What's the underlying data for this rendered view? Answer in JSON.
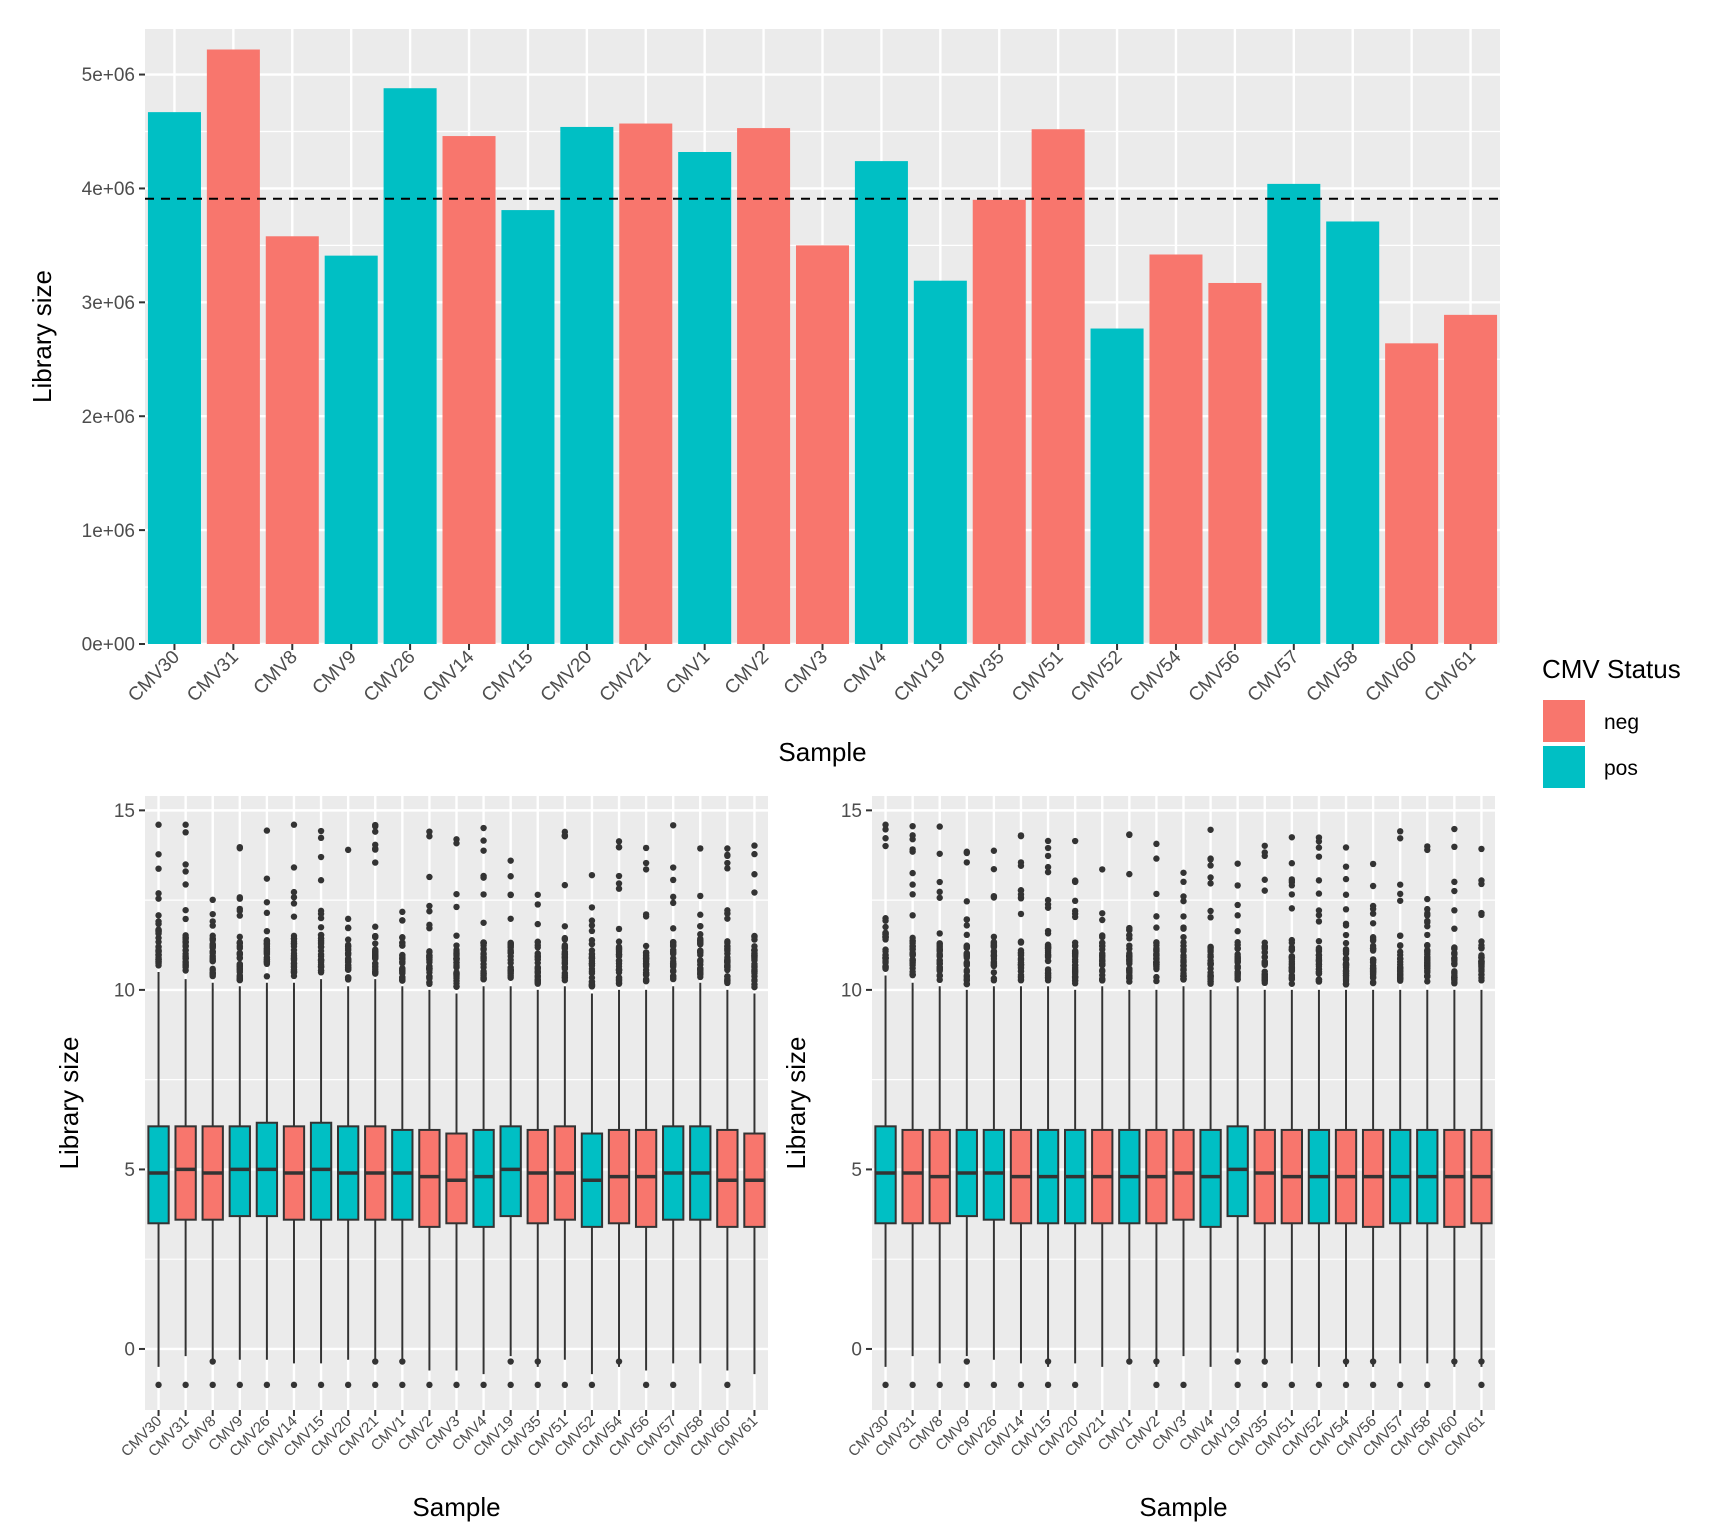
{
  "colors": {
    "neg": "#F8766D",
    "pos": "#00BFC4",
    "panel_bg": "#EBEBEB",
    "grid": "#FFFFFF",
    "box_line": "#333333"
  },
  "legend": {
    "title": "CMV Status",
    "items": [
      {
        "label": "neg",
        "color": "#F8766D"
      },
      {
        "label": "pos",
        "color": "#00BFC4"
      }
    ]
  },
  "chart_data": [
    {
      "type": "bar",
      "xlabel": "Sample",
      "ylabel": "Library size",
      "ylim": [
        0,
        5400000
      ],
      "yticks": [
        0,
        1000000,
        2000000,
        3000000,
        4000000,
        5000000
      ],
      "ytick_labels": [
        "0e+00",
        "1e+06",
        "2e+06",
        "3e+06",
        "4e+06",
        "5e+06"
      ],
      "reference_line": 3910000,
      "categories": [
        "CMV30",
        "CMV31",
        "CMV8",
        "CMV9",
        "CMV26",
        "CMV14",
        "CMV15",
        "CMV20",
        "CMV21",
        "CMV1",
        "CMV2",
        "CMV3",
        "CMV4",
        "CMV19",
        "CMV35",
        "CMV51",
        "CMV52",
        "CMV54",
        "CMV56",
        "CMV57",
        "CMV58",
        "CMV60",
        "CMV61"
      ],
      "status": [
        "pos",
        "neg",
        "neg",
        "pos",
        "pos",
        "neg",
        "pos",
        "pos",
        "neg",
        "pos",
        "neg",
        "neg",
        "pos",
        "pos",
        "neg",
        "neg",
        "pos",
        "neg",
        "neg",
        "pos",
        "pos",
        "neg",
        "neg"
      ],
      "values": [
        4670000,
        5220000,
        3580000,
        3410000,
        4880000,
        4460000,
        3810000,
        4540000,
        4570000,
        4320000,
        4530000,
        3500000,
        4240000,
        3190000,
        3900000,
        4520000,
        2770000,
        3420000,
        3170000,
        4040000,
        3710000,
        2640000,
        2890000
      ]
    },
    {
      "type": "box",
      "xlabel": "Sample",
      "ylabel": "Library size",
      "ylim": [
        -1.7,
        15.4
      ],
      "yticks": [
        0,
        5,
        10,
        15
      ],
      "ytick_labels": [
        "0",
        "5",
        "10",
        "15"
      ],
      "categories": [
        "CMV30",
        "CMV31",
        "CMV8",
        "CMV9",
        "CMV26",
        "CMV14",
        "CMV15",
        "CMV20",
        "CMV21",
        "CMV1",
        "CMV2",
        "CMV3",
        "CMV4",
        "CMV19",
        "CMV35",
        "CMV51",
        "CMV52",
        "CMV54",
        "CMV56",
        "CMV57",
        "CMV58",
        "CMV60",
        "CMV61"
      ],
      "status": [
        "pos",
        "neg",
        "neg",
        "pos",
        "pos",
        "neg",
        "pos",
        "pos",
        "neg",
        "pos",
        "neg",
        "neg",
        "pos",
        "pos",
        "neg",
        "neg",
        "pos",
        "neg",
        "neg",
        "pos",
        "pos",
        "neg",
        "neg"
      ],
      "boxes": [
        {
          "q1": 3.5,
          "median": 4.9,
          "q3": 6.2,
          "whisker_low": -0.5,
          "whisker_high": 10.5
        },
        {
          "q1": 3.6,
          "median": 5.0,
          "q3": 6.2,
          "whisker_low": -0.2,
          "whisker_high": 10.3
        },
        {
          "q1": 3.6,
          "median": 4.9,
          "q3": 6.2,
          "whisker_low": -0.3,
          "whisker_high": 10.2
        },
        {
          "q1": 3.7,
          "median": 5.0,
          "q3": 6.2,
          "whisker_low": -0.3,
          "whisker_high": 10.1
        },
        {
          "q1": 3.7,
          "median": 5.0,
          "q3": 6.3,
          "whisker_low": -0.3,
          "whisker_high": 10.2
        },
        {
          "q1": 3.6,
          "median": 4.9,
          "q3": 6.2,
          "whisker_low": -0.4,
          "whisker_high": 10.2
        },
        {
          "q1": 3.6,
          "median": 5.0,
          "q3": 6.3,
          "whisker_low": -0.4,
          "whisker_high": 10.3
        },
        {
          "q1": 3.6,
          "median": 4.9,
          "q3": 6.2,
          "whisker_low": -0.3,
          "whisker_high": 10.1
        },
        {
          "q1": 3.6,
          "median": 4.9,
          "q3": 6.2,
          "whisker_low": -0.4,
          "whisker_high": 10.3
        },
        {
          "q1": 3.6,
          "median": 4.9,
          "q3": 6.1,
          "whisker_low": -0.4,
          "whisker_high": 10.1
        },
        {
          "q1": 3.4,
          "median": 4.8,
          "q3": 6.1,
          "whisker_low": -0.6,
          "whisker_high": 10.0
        },
        {
          "q1": 3.5,
          "median": 4.7,
          "q3": 6.0,
          "whisker_low": -0.6,
          "whisker_high": 9.9
        },
        {
          "q1": 3.4,
          "median": 4.8,
          "q3": 6.1,
          "whisker_low": -0.7,
          "whisker_high": 10.1
        },
        {
          "q1": 3.7,
          "median": 5.0,
          "q3": 6.2,
          "whisker_low": -0.2,
          "whisker_high": 10.1
        },
        {
          "q1": 3.5,
          "median": 4.9,
          "q3": 6.1,
          "whisker_low": -0.5,
          "whisker_high": 10.0
        },
        {
          "q1": 3.6,
          "median": 4.9,
          "q3": 6.2,
          "whisker_low": -0.3,
          "whisker_high": 10.1
        },
        {
          "q1": 3.4,
          "median": 4.7,
          "q3": 6.0,
          "whisker_low": -0.7,
          "whisker_high": 9.9
        },
        {
          "q1": 3.5,
          "median": 4.8,
          "q3": 6.1,
          "whisker_low": -0.5,
          "whisker_high": 10.0
        },
        {
          "q1": 3.4,
          "median": 4.8,
          "q3": 6.1,
          "whisker_low": -0.6,
          "whisker_high": 10.0
        },
        {
          "q1": 3.6,
          "median": 4.9,
          "q3": 6.2,
          "whisker_low": -0.4,
          "whisker_high": 10.1
        },
        {
          "q1": 3.6,
          "median": 4.9,
          "q3": 6.2,
          "whisker_low": -0.4,
          "whisker_high": 10.2
        },
        {
          "q1": 3.4,
          "median": 4.7,
          "q3": 6.1,
          "whisker_low": -0.6,
          "whisker_high": 10.0
        },
        {
          "q1": 3.4,
          "median": 4.7,
          "q3": 6.0,
          "whisker_low": -0.7,
          "whisker_high": 9.9
        }
      ]
    },
    {
      "type": "box",
      "xlabel": "Sample",
      "ylabel": "Library size",
      "ylim": [
        -1.7,
        15.4
      ],
      "yticks": [
        0,
        5,
        10,
        15
      ],
      "ytick_labels": [
        "0",
        "5",
        "10",
        "15"
      ],
      "categories": [
        "CMV30",
        "CMV31",
        "CMV8",
        "CMV9",
        "CMV26",
        "CMV14",
        "CMV15",
        "CMV20",
        "CMV21",
        "CMV1",
        "CMV2",
        "CMV3",
        "CMV4",
        "CMV19",
        "CMV35",
        "CMV51",
        "CMV52",
        "CMV54",
        "CMV56",
        "CMV57",
        "CMV58",
        "CMV60",
        "CMV61"
      ],
      "status": [
        "pos",
        "neg",
        "neg",
        "pos",
        "pos",
        "neg",
        "pos",
        "pos",
        "neg",
        "pos",
        "neg",
        "neg",
        "pos",
        "pos",
        "neg",
        "neg",
        "pos",
        "neg",
        "neg",
        "pos",
        "pos",
        "neg",
        "neg"
      ],
      "boxes": [
        {
          "q1": 3.5,
          "median": 4.9,
          "q3": 6.2,
          "whisker_low": -0.5,
          "whisker_high": 10.4
        },
        {
          "q1": 3.5,
          "median": 4.9,
          "q3": 6.1,
          "whisker_low": -0.2,
          "whisker_high": 10.2
        },
        {
          "q1": 3.5,
          "median": 4.8,
          "q3": 6.1,
          "whisker_low": -0.4,
          "whisker_high": 10.1
        },
        {
          "q1": 3.7,
          "median": 4.9,
          "q3": 6.1,
          "whisker_low": -0.2,
          "whisker_high": 10.0
        },
        {
          "q1": 3.6,
          "median": 4.9,
          "q3": 6.1,
          "whisker_low": -0.3,
          "whisker_high": 10.1
        },
        {
          "q1": 3.5,
          "median": 4.8,
          "q3": 6.1,
          "whisker_low": -0.4,
          "whisker_high": 10.1
        },
        {
          "q1": 3.5,
          "median": 4.8,
          "q3": 6.1,
          "whisker_low": -0.5,
          "whisker_high": 10.1
        },
        {
          "q1": 3.5,
          "median": 4.8,
          "q3": 6.1,
          "whisker_low": -0.4,
          "whisker_high": 10.0
        },
        {
          "q1": 3.5,
          "median": 4.8,
          "q3": 6.1,
          "whisker_low": -0.5,
          "whisker_high": 10.1
        },
        {
          "q1": 3.5,
          "median": 4.8,
          "q3": 6.1,
          "whisker_low": -0.3,
          "whisker_high": 10.0
        },
        {
          "q1": 3.5,
          "median": 4.8,
          "q3": 6.1,
          "whisker_low": -0.5,
          "whisker_high": 10.0
        },
        {
          "q1": 3.6,
          "median": 4.9,
          "q3": 6.1,
          "whisker_low": -0.2,
          "whisker_high": 10.1
        },
        {
          "q1": 3.4,
          "median": 4.8,
          "q3": 6.1,
          "whisker_low": -0.5,
          "whisker_high": 10.0
        },
        {
          "q1": 3.7,
          "median": 5.0,
          "q3": 6.2,
          "whisker_low": -0.1,
          "whisker_high": 10.1
        },
        {
          "q1": 3.5,
          "median": 4.9,
          "q3": 6.1,
          "whisker_low": -0.3,
          "whisker_high": 10.0
        },
        {
          "q1": 3.5,
          "median": 4.8,
          "q3": 6.1,
          "whisker_low": -0.4,
          "whisker_high": 10.0
        },
        {
          "q1": 3.5,
          "median": 4.8,
          "q3": 6.1,
          "whisker_low": -0.5,
          "whisker_high": 10.0
        },
        {
          "q1": 3.5,
          "median": 4.8,
          "q3": 6.1,
          "whisker_low": -0.5,
          "whisker_high": 10.0
        },
        {
          "q1": 3.4,
          "median": 4.8,
          "q3": 6.1,
          "whisker_low": -0.5,
          "whisker_high": 10.0
        },
        {
          "q1": 3.5,
          "median": 4.8,
          "q3": 6.1,
          "whisker_low": -0.4,
          "whisker_high": 10.0
        },
        {
          "q1": 3.5,
          "median": 4.8,
          "q3": 6.1,
          "whisker_low": -0.4,
          "whisker_high": 10.0
        },
        {
          "q1": 3.4,
          "median": 4.8,
          "q3": 6.1,
          "whisker_low": -0.5,
          "whisker_high": 10.0
        },
        {
          "q1": 3.5,
          "median": 4.8,
          "q3": 6.1,
          "whisker_low": -0.5,
          "whisker_high": 10.0
        }
      ]
    }
  ]
}
